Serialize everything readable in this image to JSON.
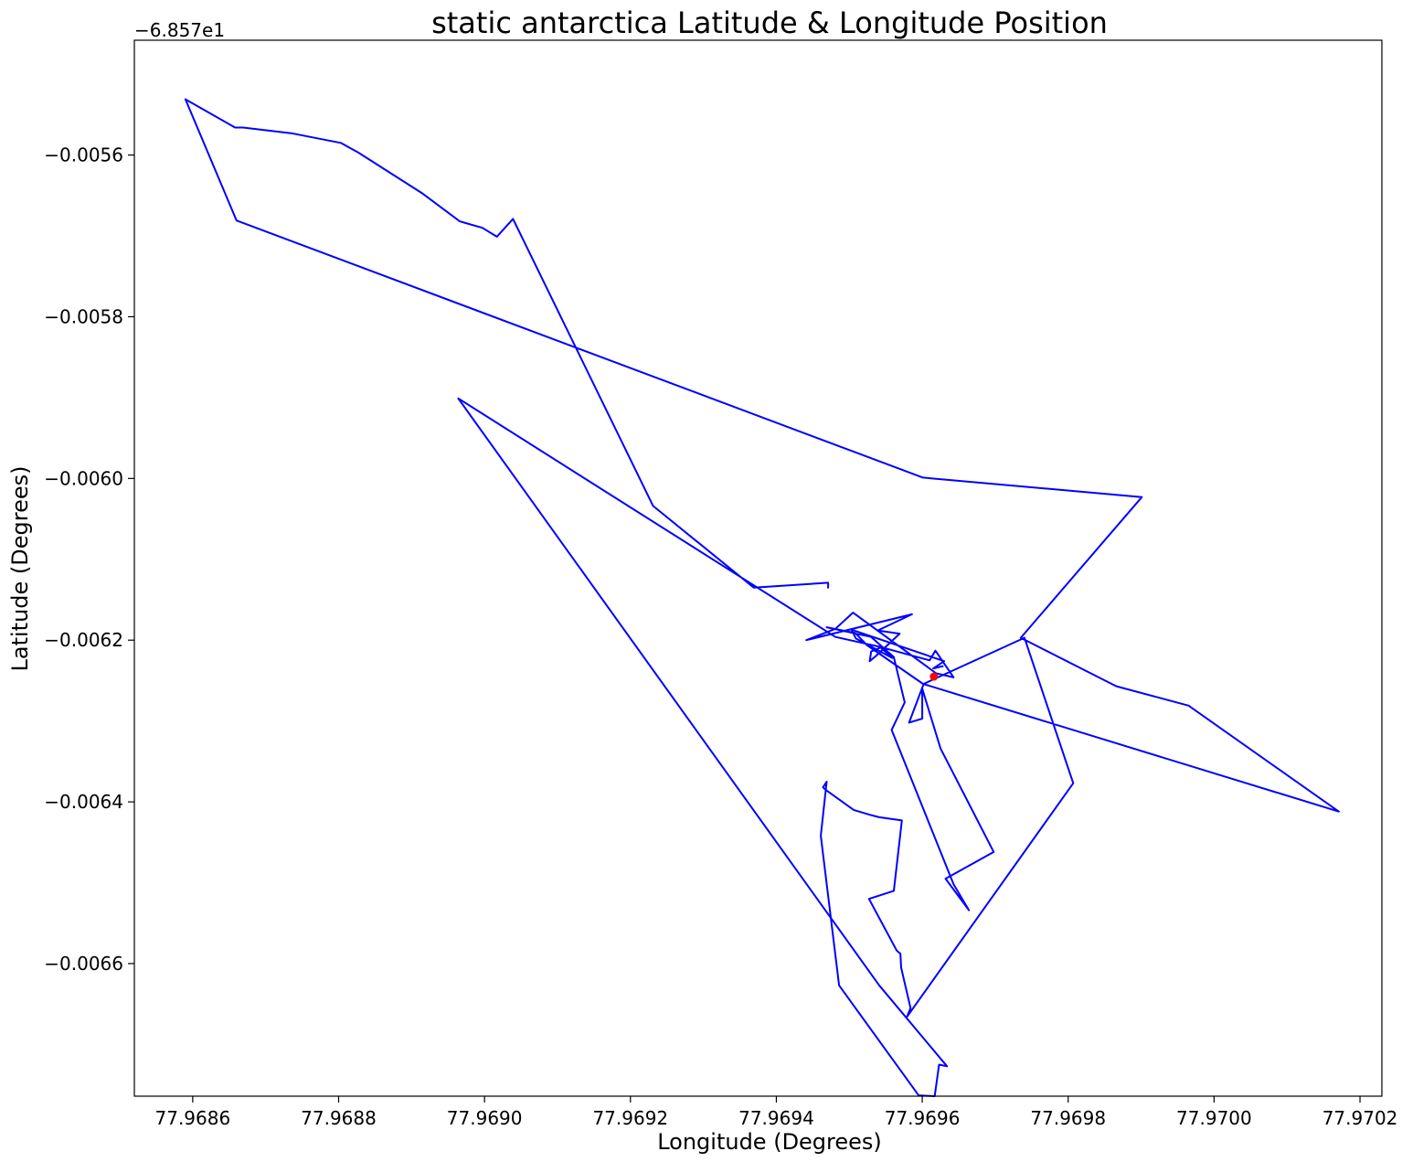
{
  "chart_data": {
    "type": "line",
    "title": "static antarctica Latitude & Longitude Position",
    "xlabel": "Longitude (Degrees)",
    "ylabel": "Latitude (Degrees)",
    "y_offset_label": "−6.857e1",
    "xlim": [
      77.96852,
      77.97023
    ],
    "ylim": [
      -0.006764,
      -0.005458
    ],
    "xticks": [
      77.9686,
      77.9688,
      77.969,
      77.9692,
      77.9694,
      77.9696,
      77.9698,
      77.97,
      77.9702
    ],
    "xtick_labels": [
      "77.9686",
      "77.9688",
      "77.9690",
      "77.9692",
      "77.9694",
      "77.9696",
      "77.9698",
      "77.9700",
      "77.9702"
    ],
    "yticks": [
      -0.0056,
      -0.0058,
      -0.006,
      -0.0062,
      -0.0064,
      -0.0066
    ],
    "ytick_labels": [
      "−0.0056",
      "−0.0058",
      "−0.0060",
      "−0.0062",
      "−0.0064",
      "−0.0066"
    ],
    "grid": false,
    "series": [
      {
        "color": "#0000ff",
        "points": [
          [
            77.969471,
            -0.006136
          ],
          [
            77.969471,
            -0.006129
          ],
          [
            77.969369,
            -0.006135
          ],
          [
            77.969231,
            -0.006034
          ],
          [
            77.969039,
            -0.005679
          ],
          [
            77.969017,
            -0.005701
          ],
          [
            77.968997,
            -0.00569
          ],
          [
            77.968966,
            -0.005682
          ],
          [
            77.968914,
            -0.005647
          ],
          [
            77.968827,
            -0.005597
          ],
          [
            77.968803,
            -0.005585
          ],
          [
            77.968735,
            -0.005573
          ],
          [
            77.968669,
            -0.005566
          ],
          [
            77.968658,
            -0.005566
          ],
          [
            77.96859,
            -0.005531
          ],
          [
            77.96866,
            -0.005681
          ],
          [
            77.969601,
            -0.005999
          ],
          [
            77.969901,
            -0.006023
          ],
          [
            77.969735,
            -0.006197
          ],
          [
            77.969866,
            -0.006257
          ],
          [
            77.969965,
            -0.006281
          ],
          [
            77.970171,
            -0.006412
          ],
          [
            77.969601,
            -0.006254
          ],
          [
            77.969524,
            -0.006206
          ],
          [
            77.969508,
            -0.006191
          ],
          [
            77.969469,
            -0.006184
          ],
          [
            77.96953,
            -0.006196
          ],
          [
            77.969561,
            -0.006221
          ],
          [
            77.969576,
            -0.006277
          ],
          [
            77.969558,
            -0.006311
          ],
          [
            77.969643,
            -0.006502
          ],
          [
            77.969664,
            -0.006534
          ],
          [
            77.969632,
            -0.006495
          ],
          [
            77.969698,
            -0.006462
          ],
          [
            77.969625,
            -0.006334
          ],
          [
            77.9696,
            -0.00626
          ],
          [
            77.9696,
            -0.006297
          ],
          [
            77.969582,
            -0.006302
          ],
          [
            77.969602,
            -0.006254
          ],
          [
            77.96974,
            -0.006197
          ],
          [
            77.969807,
            -0.006377
          ],
          [
            77.969579,
            -0.006666
          ],
          [
            77.969584,
            -0.006655
          ],
          [
            77.969571,
            -0.006605
          ],
          [
            77.96957,
            -0.006588
          ],
          [
            77.969565,
            -0.006584
          ],
          [
            77.969527,
            -0.00652
          ],
          [
            77.969561,
            -0.00651
          ],
          [
            77.969572,
            -0.006423
          ],
          [
            77.969541,
            -0.006419
          ],
          [
            77.969528,
            -0.006416
          ],
          [
            77.969506,
            -0.00641
          ],
          [
            77.969469,
            -0.006386
          ],
          [
            77.969464,
            -0.006382
          ],
          [
            77.969469,
            -0.006375
          ],
          [
            77.969461,
            -0.006442
          ],
          [
            77.969486,
            -0.006627
          ],
          [
            77.969595,
            -0.006763
          ],
          [
            77.969617,
            -0.006764
          ],
          [
            77.969623,
            -0.006725
          ],
          [
            77.969634,
            -0.006727
          ],
          [
            77.969541,
            -0.006627
          ],
          [
            77.968964,
            -0.005901
          ],
          [
            77.969481,
            -0.006196
          ],
          [
            77.969541,
            -0.006208
          ],
          [
            77.96961,
            -0.006225
          ],
          [
            77.969618,
            -0.006213
          ],
          [
            77.969643,
            -0.006246
          ],
          [
            77.969619,
            -0.006241
          ],
          [
            77.969505,
            -0.006166
          ],
          [
            77.969481,
            -0.006186
          ],
          [
            77.969441,
            -0.0062
          ],
          [
            77.969586,
            -0.006168
          ],
          [
            77.969539,
            -0.006188
          ],
          [
            77.969569,
            -0.006192
          ],
          [
            77.969536,
            -0.00622
          ],
          [
            77.969528,
            -0.006226
          ],
          [
            77.96953,
            -0.006214
          ],
          [
            77.969543,
            -0.006209
          ],
          [
            77.969559,
            -0.006222
          ],
          [
            77.969509,
            -0.006198
          ],
          [
            77.969503,
            -0.006187
          ],
          [
            77.96963,
            -0.006226
          ],
          [
            77.969615,
            -0.006235
          ],
          [
            77.969629,
            -0.006232
          ]
        ]
      }
    ],
    "marker_points": [
      {
        "x": 77.969616,
        "y": -0.006245,
        "color": "#ff0000"
      }
    ]
  }
}
